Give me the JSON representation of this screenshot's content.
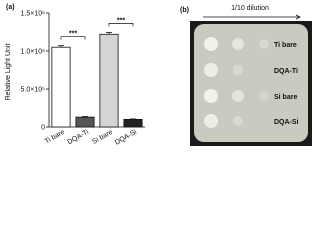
{
  "chart_data": {
    "type": "bar",
    "panel_label": "(a)",
    "ylabel": "Relative Light Unit",
    "categories": [
      "Ti bare",
      "DQA-Ti",
      "Si bare",
      "DQA-Si"
    ],
    "values": [
      1050000,
      130000,
      1220000,
      100000
    ],
    "errors": [
      20000,
      8000,
      25000,
      6000
    ],
    "colors": [
      "#ffffff",
      "#555555",
      "#d4d4d4",
      "#222222"
    ],
    "ylim": [
      0,
      1500000
    ],
    "yticks": [
      0,
      {
        "value": 500000,
        "label": "5.0×10⁵"
      },
      {
        "value": 1000000,
        "label": "1.0×10⁶"
      },
      {
        "value": 1500000,
        "label": "1.5×10⁶"
      }
    ],
    "annotations": [
      {
        "text": "***",
        "from": 0,
        "to": 1
      },
      {
        "text": "***",
        "from": 2,
        "to": 3
      }
    ]
  },
  "image_panel": {
    "panel_label": "(b)",
    "title": "1/10 dilution",
    "rows": [
      "Ti bare",
      "DQA-Ti",
      "Si bare",
      "DQA-Si"
    ]
  }
}
